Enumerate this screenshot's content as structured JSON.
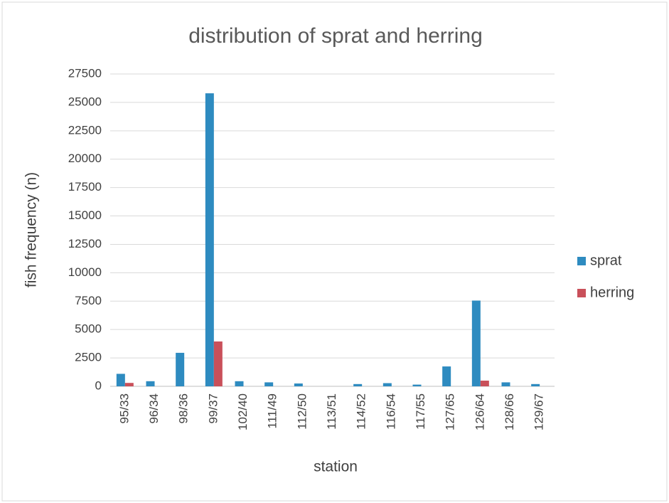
{
  "chart_data": {
    "type": "bar",
    "title": "distribution of sprat and herring",
    "x_label": "station",
    "y_label": "fish frequency (n)",
    "categories": [
      "95/33",
      "96/34",
      "98/36",
      "99/37",
      "102/40",
      "111/49",
      "112/50",
      "113/51",
      "114/52",
      "116/54",
      "117/55",
      "127/65",
      "126/64",
      "128/66",
      "129/67"
    ],
    "series": [
      {
        "name": "sprat",
        "color": "#2e8bc0",
        "values": [
          1100,
          450,
          2950,
          25800,
          450,
          350,
          250,
          0,
          200,
          280,
          150,
          1750,
          7550,
          350,
          200
        ]
      },
      {
        "name": "herring",
        "color": "#c9505a",
        "values": [
          300,
          0,
          0,
          3950,
          0,
          0,
          0,
          0,
          0,
          0,
          0,
          0,
          500,
          0,
          0
        ]
      }
    ],
    "ylim": [
      0,
      27500
    ],
    "yticks": [
      0,
      2500,
      5000,
      7500,
      10000,
      12500,
      15000,
      17500,
      20000,
      22500,
      25000,
      27500
    ],
    "grid": true,
    "legend": "right"
  }
}
